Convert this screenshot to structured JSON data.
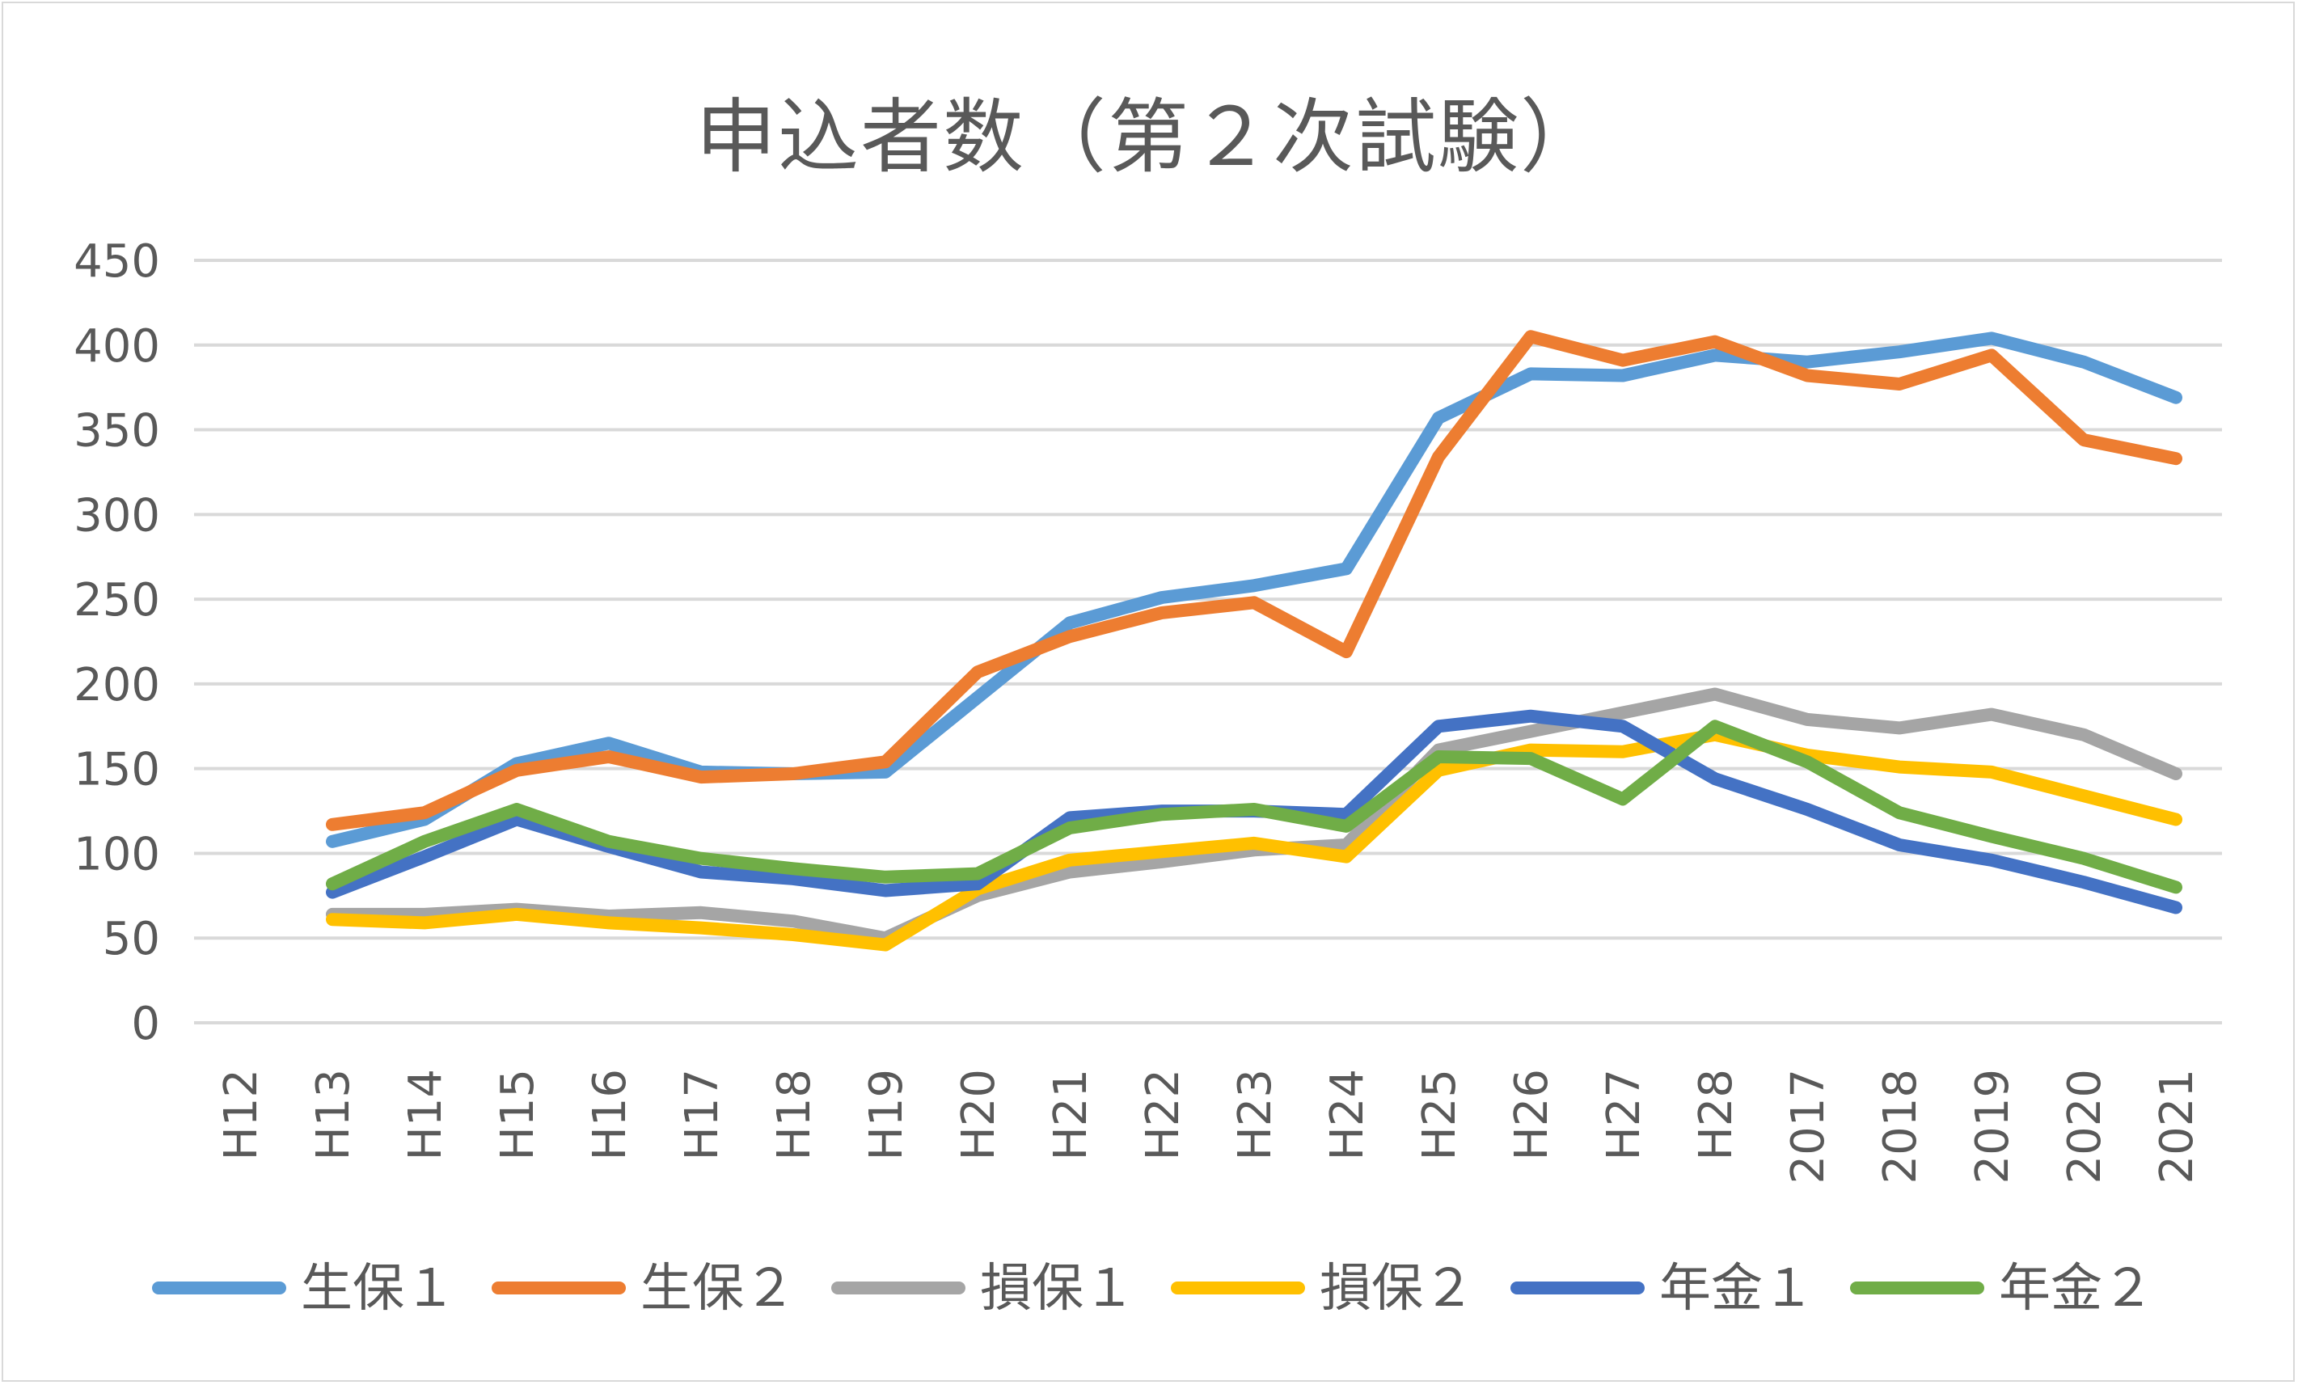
{
  "chart_data": {
    "type": "line",
    "title": "申込者数（第２次試験）",
    "xlabel": "",
    "ylabel": "",
    "ylim": [
      0,
      450
    ],
    "yticks": [
      0,
      50,
      100,
      150,
      200,
      250,
      300,
      350,
      400,
      450
    ],
    "grid": true,
    "legend_position": "bottom",
    "categories": [
      "H12",
      "H13",
      "H14",
      "H15",
      "H16",
      "H17",
      "H18",
      "H19",
      "H20",
      "H21",
      "H22",
      "H23",
      "H24",
      "H25",
      "H26",
      "H27",
      "H28",
      "2017",
      "2018",
      "2019",
      "2020",
      "2021"
    ],
    "series": [
      {
        "name": "生保１",
        "color": "#5b9bd5",
        "values": [
          null,
          107,
          120,
          153,
          165,
          148,
          147,
          148,
          192,
          236,
          251,
          258,
          268,
          357,
          383,
          382,
          394,
          390,
          396,
          404,
          390,
          369
        ]
      },
      {
        "name": "生保２",
        "color": "#ed7d31",
        "values": [
          null,
          117,
          124,
          149,
          157,
          145,
          147,
          154,
          207,
          228,
          242,
          248,
          219,
          334,
          405,
          391,
          402,
          382,
          377,
          394,
          344,
          333
        ]
      },
      {
        "name": "損保１",
        "color": "#a5a5a5",
        "values": [
          null,
          64,
          64,
          67,
          63,
          65,
          60,
          50,
          75,
          89,
          95,
          102,
          105,
          161,
          172,
          183,
          194,
          179,
          174,
          182,
          170,
          147
        ]
      },
      {
        "name": "損保２",
        "color": "#ffc000",
        "values": [
          null,
          61,
          59,
          64,
          59,
          56,
          52,
          46,
          79,
          96,
          101,
          106,
          98,
          149,
          161,
          160,
          170,
          158,
          151,
          148,
          134,
          120
        ]
      },
      {
        "name": "年金１",
        "color": "#4472c4",
        "values": [
          null,
          77,
          98,
          120,
          104,
          89,
          85,
          78,
          82,
          121,
          125,
          125,
          123,
          175,
          181,
          175,
          144,
          126,
          105,
          96,
          83,
          68
        ]
      },
      {
        "name": "年金２",
        "color": "#70ad47",
        "values": [
          null,
          82,
          107,
          126,
          107,
          97,
          91,
          86,
          88,
          115,
          123,
          126,
          116,
          157,
          156,
          132,
          175,
          154,
          124,
          110,
          97,
          80
        ]
      }
    ]
  }
}
